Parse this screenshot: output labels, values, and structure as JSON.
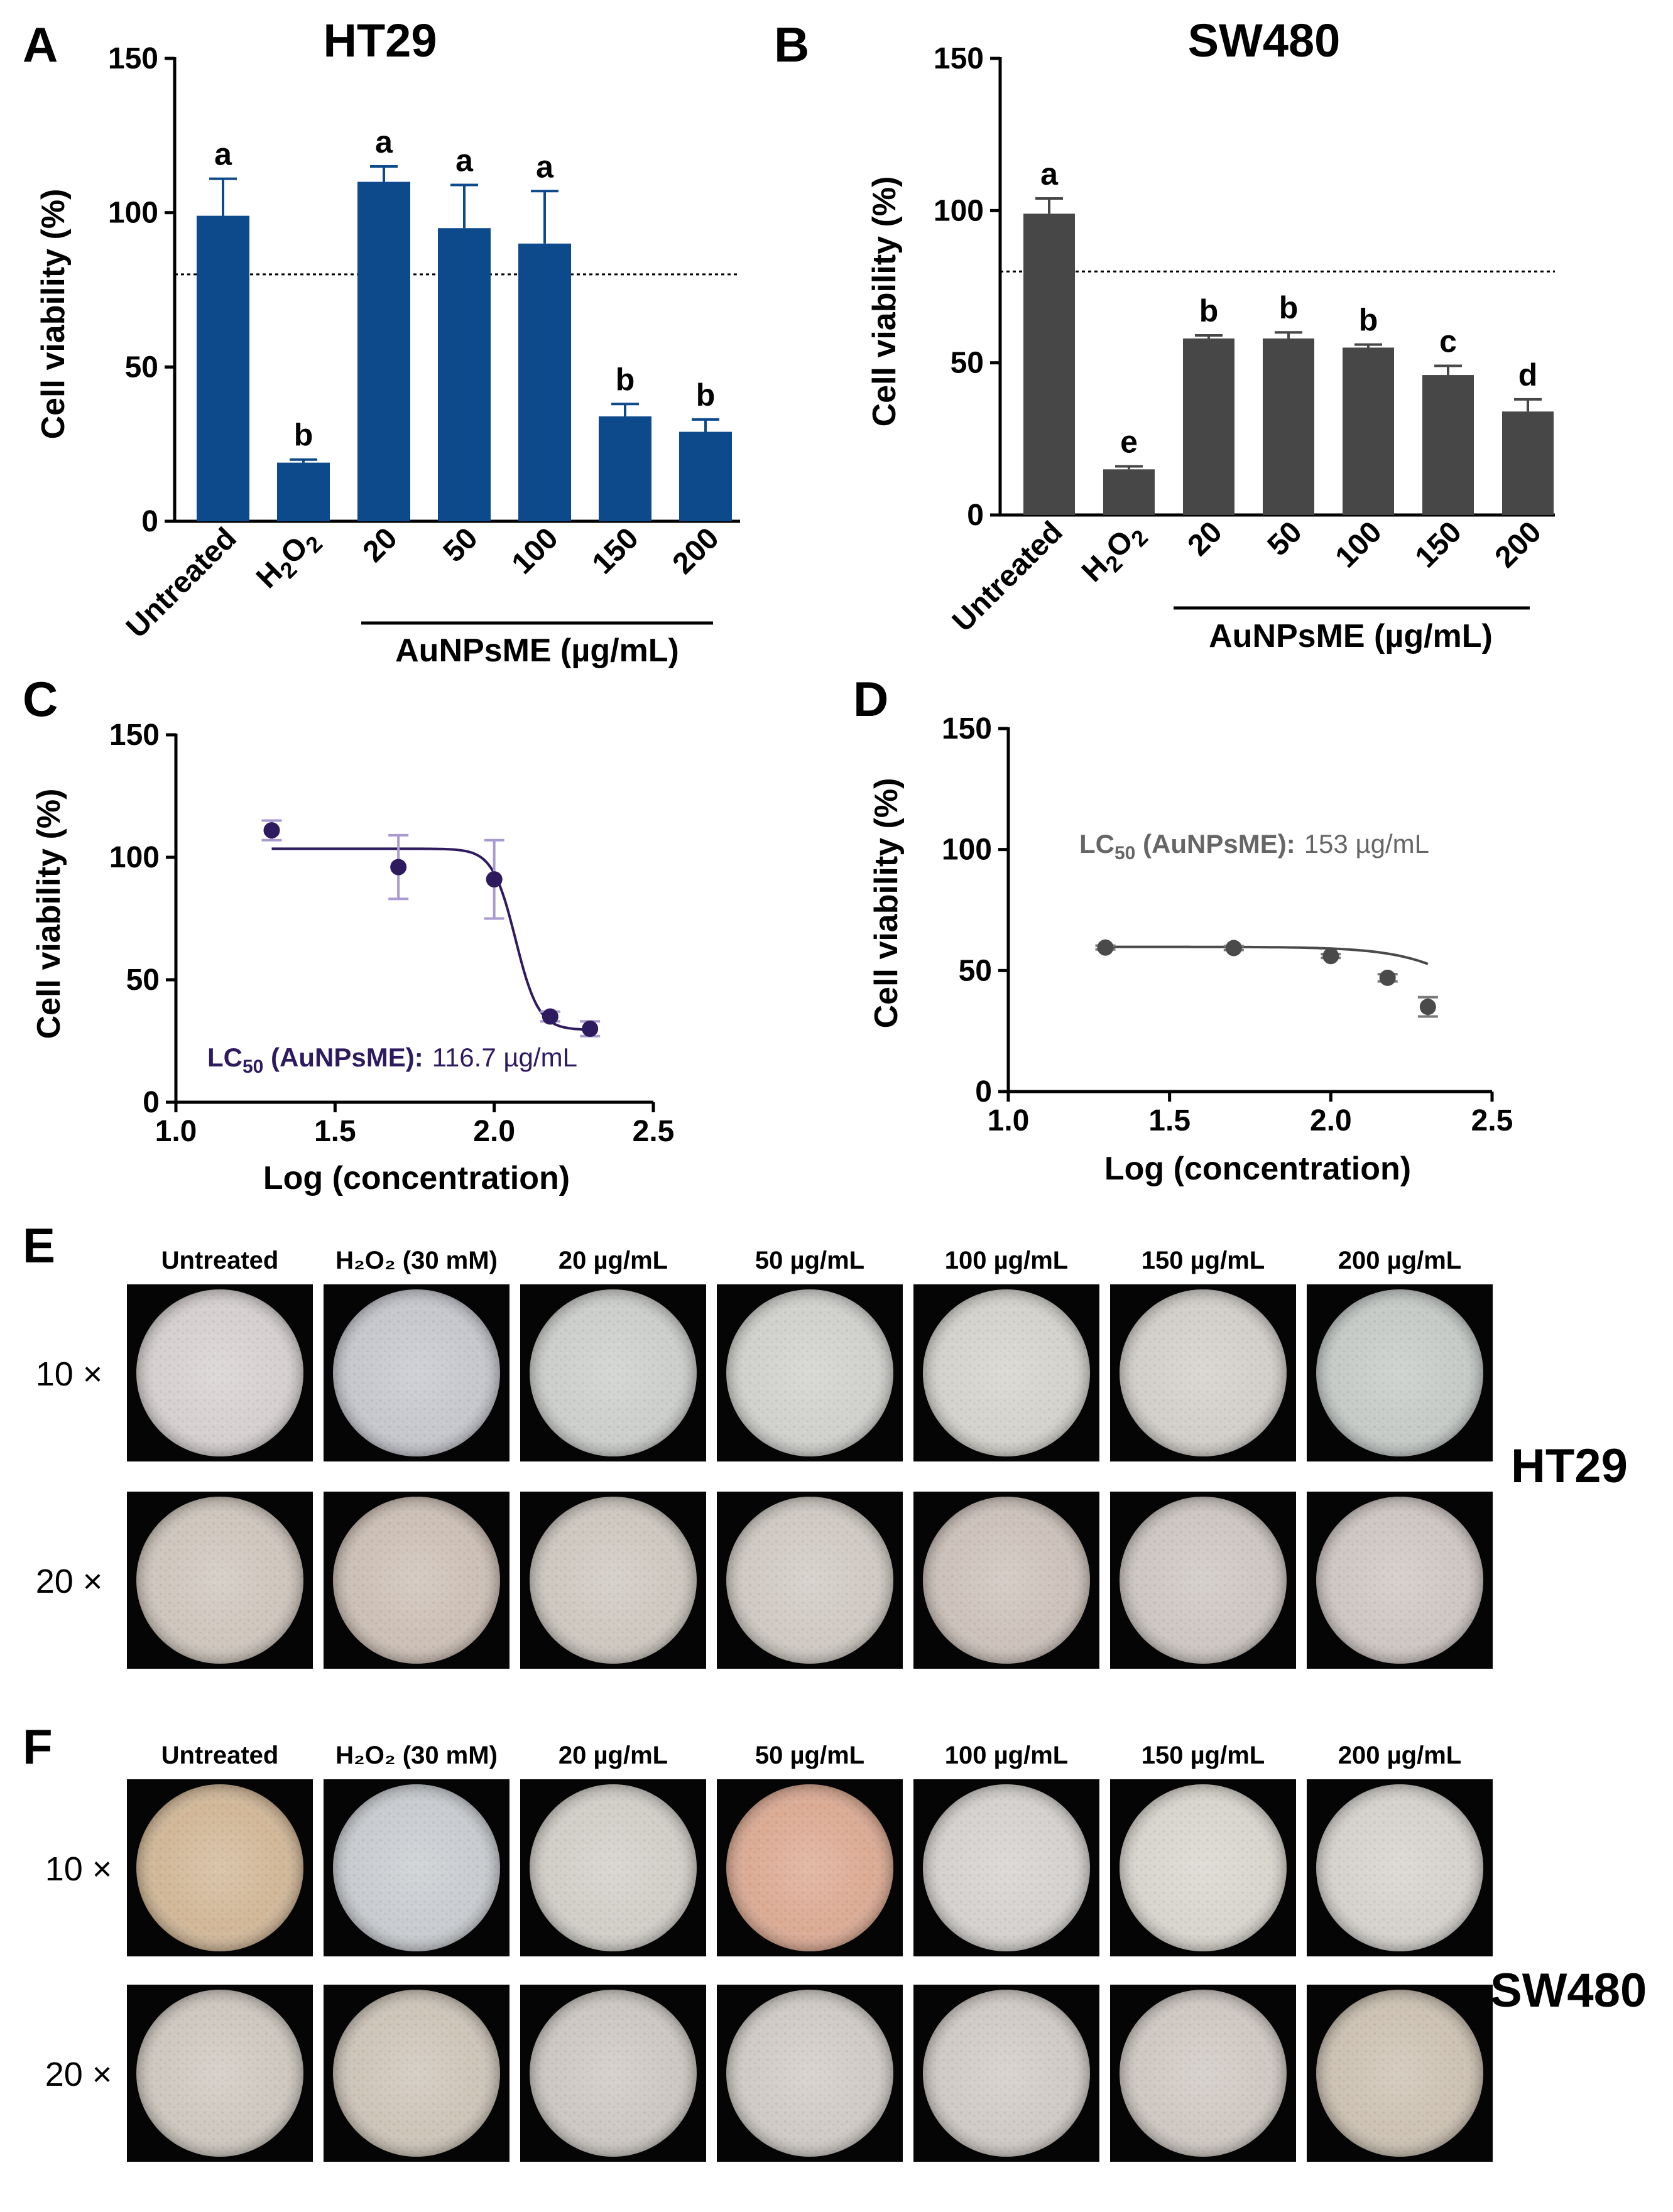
{
  "panels": {
    "A": "A",
    "B": "B",
    "C": "C",
    "D": "D",
    "E": "E",
    "F": "F"
  },
  "chart_data": [
    {
      "id": "A",
      "type": "bar",
      "title": "HT29",
      "ylabel": "Cell viability (%)",
      "xlabel": "AuNPsME (µg/mL)",
      "categories": [
        "Untreated",
        "H2O2",
        "20",
        "50",
        "100",
        "150",
        "200"
      ],
      "values": [
        99,
        19,
        110,
        95,
        90,
        34,
        29
      ],
      "errors": [
        12,
        1,
        5,
        14,
        17,
        4,
        4
      ],
      "significance": [
        "a",
        "b",
        "a",
        "a",
        "a",
        "b",
        "b"
      ],
      "ylim": [
        0,
        150
      ],
      "yticks": [
        "0",
        "50",
        "100",
        "150"
      ],
      "reference_line": 80,
      "color": "#0d4a8c"
    },
    {
      "id": "B",
      "type": "bar",
      "title": "SW480",
      "ylabel": "Cell viability (%)",
      "xlabel": "AuNPsME (µg/mL)",
      "categories": [
        "Untreated",
        "H2O2",
        "20",
        "50",
        "100",
        "150",
        "200"
      ],
      "values": [
        99,
        15,
        58,
        58,
        55,
        46,
        34
      ],
      "errors": [
        5,
        1,
        1,
        2,
        1,
        3,
        4
      ],
      "significance": [
        "a",
        "e",
        "b",
        "b",
        "b",
        "c",
        "d"
      ],
      "ylim": [
        0,
        150
      ],
      "yticks": [
        "0",
        "50",
        "100",
        "150"
      ],
      "reference_line": 80,
      "color": "#474747"
    },
    {
      "id": "C",
      "type": "scatter",
      "ylabel": "Cell viability (%)",
      "xlabel": "Log (concentration)",
      "x": [
        1.301,
        1.699,
        2.0,
        2.176,
        2.301
      ],
      "y": [
        111,
        96,
        91,
        35,
        30
      ],
      "errors": [
        4,
        13,
        16,
        2,
        3
      ],
      "fit": {
        "top": 103.5,
        "bottom": 29.5,
        "logec50": 2.067,
        "hill": -12
      },
      "annotation": {
        "prefix": "LC",
        "sub": "50",
        "suffix": " (AuNPsME):",
        "value": "116.7 µg/mL"
      },
      "xlim": [
        1.0,
        2.5
      ],
      "ylim": [
        0,
        150
      ],
      "xticks": [
        "1.0",
        "1.5",
        "2.0",
        "2.5"
      ],
      "yticks": [
        "0",
        "50",
        "100",
        "150"
      ],
      "color": "#2e1a5e",
      "error_color": "#a99ad0"
    },
    {
      "id": "D",
      "type": "scatter",
      "ylabel": "Cell viability (%)",
      "xlabel": "Log (concentration)",
      "x": [
        1.301,
        1.699,
        2.0,
        2.176,
        2.301
      ],
      "y": [
        59.5,
        59.3,
        56,
        47,
        35
      ],
      "errors": [
        0.8,
        0.8,
        0.8,
        1.5,
        4
      ],
      "fit": {
        "top": 59.8,
        "bottom": 0,
        "logec50": 2.55,
        "hill": -3.5
      },
      "annotation": {
        "prefix": "LC",
        "sub": "50",
        "suffix": " (AuNPsME):",
        "value": "153 µg/mL"
      },
      "xlim": [
        1.0,
        2.5
      ],
      "ylim": [
        0,
        150
      ],
      "xticks": [
        "1.0",
        "1.5",
        "2.0",
        "2.5"
      ],
      "yticks": [
        "0",
        "50",
        "100",
        "150"
      ],
      "color": "#4a4a4a",
      "error_color": "#7a7a7a"
    }
  ],
  "micrographs": {
    "E": {
      "cell_line": "HT29",
      "columns": [
        "Untreated",
        "H₂O₂ (30 mM)",
        "20 µg/mL",
        "50 µg/mL",
        "100 µg/mL",
        "150 µg/mL",
        "200 µg/mL"
      ],
      "rows": [
        "10 ×",
        "20 ×"
      ],
      "tints": [
        [
          "#d6d1d0",
          "#c7c8ce",
          "#cdcfcc",
          "#d1d2ce",
          "#d4d3cd",
          "#d3d0cb",
          "#c6cbc8"
        ],
        [
          "#cfc6bd",
          "#cdc0b6",
          "#cec8c0",
          "#d0cac3",
          "#cdc2bb",
          "#cec7c2",
          "#cfc7c4"
        ]
      ]
    },
    "F": {
      "cell_line": "SW480",
      "columns": [
        "Untreated",
        "H₂O₂ (30 mM)",
        "20 µg/mL",
        "50 µg/mL",
        "100 µg/mL",
        "150 µg/mL",
        "200 µg/mL"
      ],
      "rows": [
        "10 ×",
        "20 ×"
      ],
      "tints": [
        [
          "#d2b898",
          "#c9ccd0",
          "#d2cfc8",
          "#dcab94",
          "#d5d2cf",
          "#d9d6ce",
          "#d6d3ce"
        ],
        [
          "#cfc8c0",
          "#cec5b9",
          "#cdc8c2",
          "#d0cbc5",
          "#d1cbc6",
          "#d0c9c3",
          "#cdc2b3"
        ]
      ]
    }
  }
}
